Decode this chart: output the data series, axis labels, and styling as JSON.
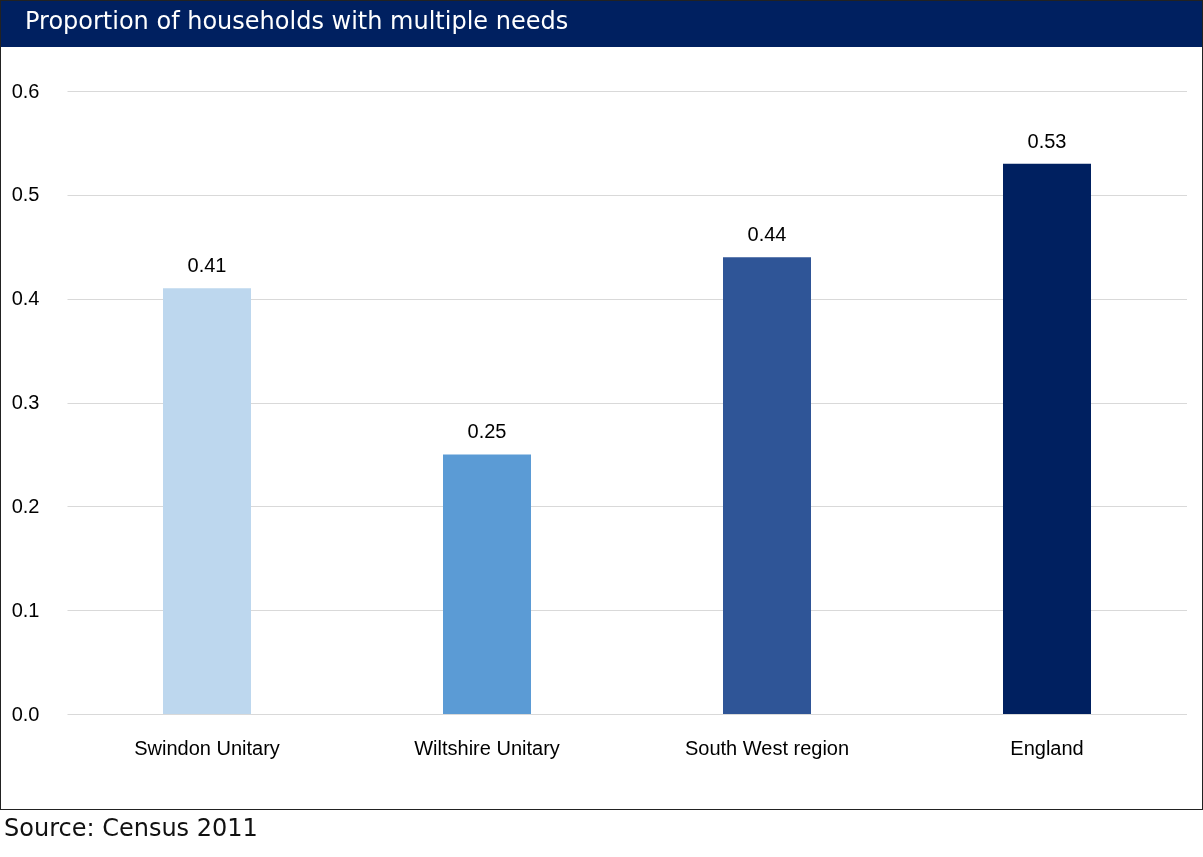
{
  "chart_data": {
    "type": "bar",
    "title": "Proportion of households with multiple needs",
    "categories": [
      "Swindon Unitary",
      "Wiltshire Unitary",
      "South West region",
      "England"
    ],
    "values": [
      0.41,
      0.25,
      0.44,
      0.53
    ],
    "colors": [
      "#bdd7ee",
      "#5b9bd5",
      "#2f5597",
      "#002060"
    ],
    "ylim": [
      0,
      0.6
    ],
    "yticks": [
      {
        "value": 0,
        "label": "0.0"
      },
      0.1,
      0.2,
      0.3,
      0.4,
      0.5,
      0.6
    ],
    "grid": "y",
    "data_labels": true,
    "annotations": [
      "Source: Census 2011"
    ]
  }
}
